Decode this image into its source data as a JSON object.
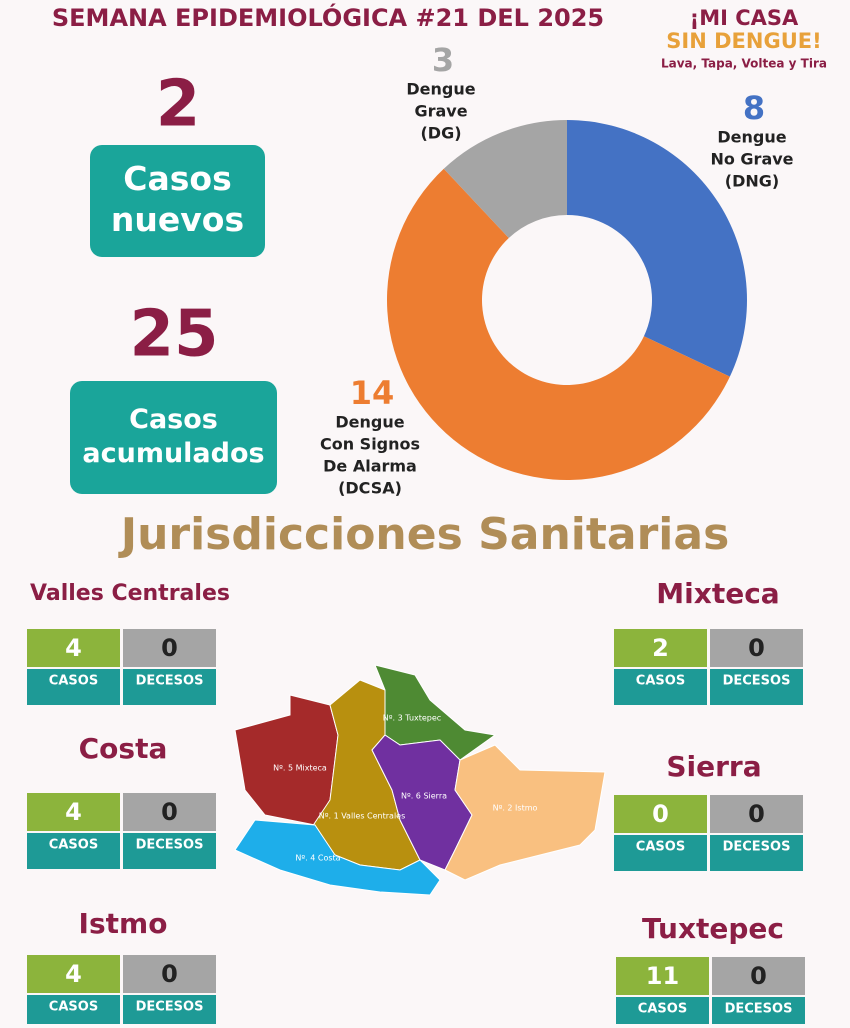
{
  "header": {
    "title": "SEMANA EPIDEMIOLÓGICA #21 DEL 2025",
    "logo_line1": "¡MI CASA",
    "logo_line2": "SIN DENGUE!",
    "logo_tagline": "Lava, Tapa, Voltea y Tira"
  },
  "stats": [
    {
      "value": 2,
      "label_lines": [
        "Casos",
        "nuevos"
      ]
    },
    {
      "value": 25,
      "label_lines": [
        "Casos",
        "acumulados"
      ]
    }
  ],
  "chart_data": {
    "type": "donut",
    "categories": [
      [
        "Dengue",
        "No Grave",
        "(DNG)"
      ],
      [
        "Dengue",
        "Con Signos",
        "De Alarma",
        "(DCSA)"
      ],
      [
        "Dengue",
        "Grave",
        "(DG)"
      ]
    ],
    "values": [
      8,
      14,
      3
    ],
    "colors": [
      "#4472c4",
      "#ed7d31",
      "#a5a5a5"
    ]
  },
  "section_title": "Jurisdicciones Sanitarias",
  "case_label": "CASOS",
  "death_label": "DECESOS",
  "jurisdictions": [
    {
      "name": "Valles Centrales",
      "cases": 4,
      "deaths": 0
    },
    {
      "name": "Mixteca",
      "cases": 2,
      "deaths": 0
    },
    {
      "name": "Costa",
      "cases": 4,
      "deaths": 0
    },
    {
      "name": "Sierra",
      "cases": 0,
      "deaths": 0
    },
    {
      "name": "Istmo",
      "cases": 4,
      "deaths": 0
    },
    {
      "name": "Tuxtepec",
      "cases": 11,
      "deaths": 0
    }
  ],
  "map_labels": [
    "Nº. 5 Mixteca",
    "Nº. 1 Valles Centrales",
    "Nº. 3 Tuxtepec",
    "Nº. 6 Sierra",
    "Nº. 2 Istmo",
    "Nº. 4 Costa"
  ]
}
